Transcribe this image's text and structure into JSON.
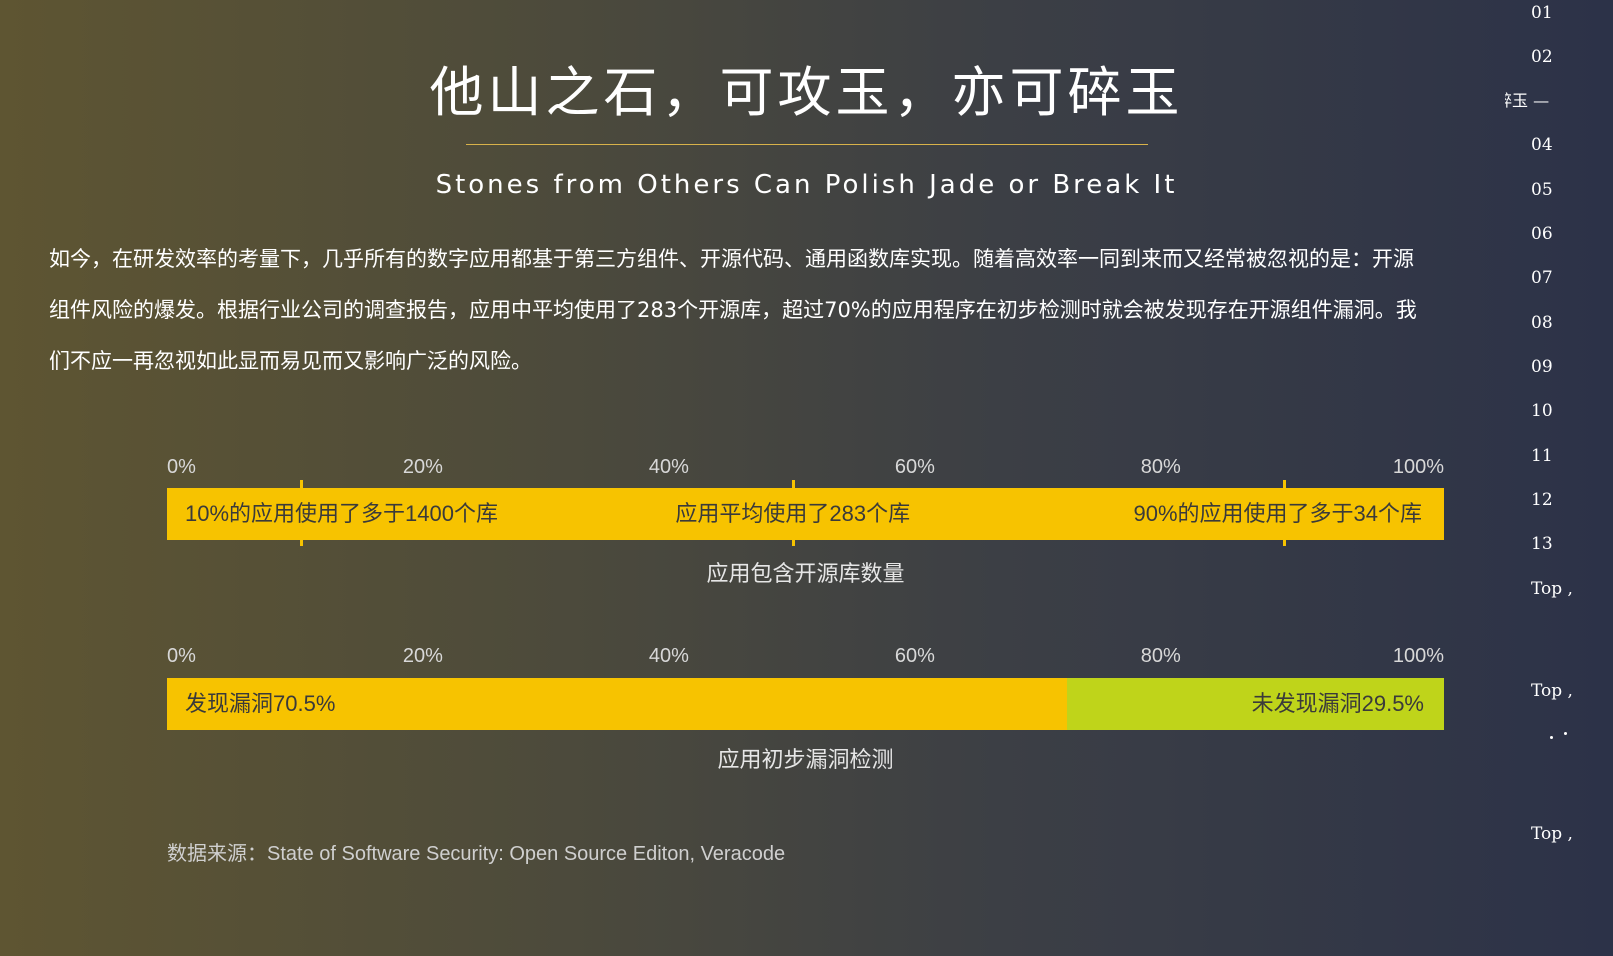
{
  "article": {
    "title": "他山之石，可攻玉，亦可碎玉",
    "subtitle": "Stones from Others Can Polish Jade or Break It",
    "intro_lines": [
      "如今，在研发效率的考量下，几乎所有的数字应用都基于第三方组件、开源代码、通用函数库实现。随着高效率一同到来而又经常被忽视的是：开源",
      "组件风险的爆发。根据行业公司的调查报告，应用中平均使用了283个开源库，超过70%的应用程序在初步检测时就会被发现存在开源组件漏洞。我",
      "们不应一再忽视如此显而易见而又影响广泛的风险。"
    ]
  },
  "chart_data": [
    {
      "type": "bar",
      "title": "应用包含开源库数量",
      "axis_ticks": [
        "0%",
        "20%",
        "40%",
        "60%",
        "80%",
        "100%"
      ],
      "xlim": [
        0,
        100
      ],
      "markers": [
        {
          "x": 10.5,
          "label": "10%的应用使用了多于1400个库"
        },
        {
          "x": 49,
          "label": "应用平均使用了283个库"
        },
        {
          "x": 87.5,
          "label": "90%的应用使用了多于34个库"
        }
      ],
      "color": "#f7c300"
    },
    {
      "type": "bar",
      "title": "应用初步漏洞检测",
      "axis_ticks": [
        "0%",
        "20%",
        "40%",
        "60%",
        "80%",
        "100%"
      ],
      "xlim": [
        0,
        100
      ],
      "stacked": true,
      "segments": [
        {
          "value": 70.5,
          "label": "发现漏洞70.5%",
          "color": "#f7c300"
        },
        {
          "value": 29.5,
          "label": "未发现漏洞29.5%",
          "color": "#bfd41a"
        }
      ]
    }
  ],
  "source": "数据来源：State of Software Security: Open Source Editon, Veracode",
  "side_nav": {
    "items": [
      "01",
      "02",
      "04",
      "05",
      "06",
      "07",
      "08",
      "09",
      "10",
      "11",
      "12",
      "13",
      "Top ,",
      "Top ,",
      "Top ,"
    ],
    "active": "他山之石，可攻玉，亦可碎玉 —"
  }
}
